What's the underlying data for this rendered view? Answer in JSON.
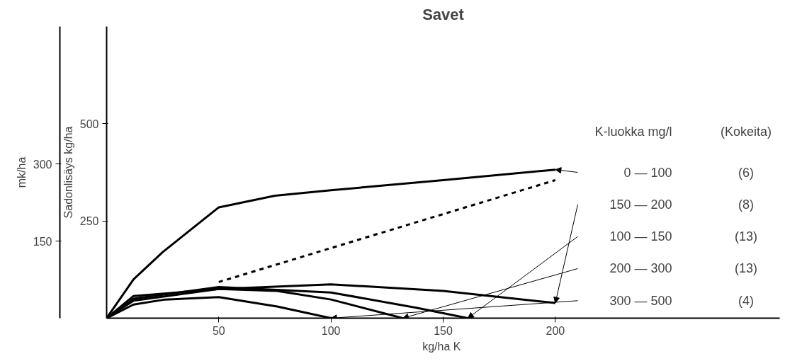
{
  "chart_data": {
    "type": "line",
    "title": "Savet",
    "xlabel": "kg/ha  K",
    "ylabel": "Sadonlisäys kg/ha",
    "y2label": "mk/ha",
    "legend_title": "K-luokka mg/l",
    "xlim": [
      0,
      300
    ],
    "xticks": [
      50,
      100,
      150,
      200
    ],
    "ylim": [
      0,
      750
    ],
    "yticks": [
      250,
      500
    ],
    "y2lim": [
      0,
      568
    ],
    "y2ticks": [
      150,
      300
    ],
    "annotations": [
      "(Kokeita)",
      "(6)",
      "(8)",
      "(13)",
      "(13)",
      "(4)"
    ],
    "series": [
      {
        "name": "0 — 100",
        "color": "#000000",
        "line_style": "solid",
        "x": [
          0,
          12,
          25,
          50,
          75,
          100,
          150,
          200
        ],
        "values": [
          0,
          100,
          170,
          285,
          315,
          329,
          355,
          382
        ]
      },
      {
        "name": "150 — 200",
        "color": "#000000",
        "line_style": "solid",
        "x": [
          0,
          12,
          50,
          100,
          150,
          200
        ],
        "values": [
          0,
          57,
          75,
          87,
          70,
          39
        ]
      },
      {
        "name": "100 — 150",
        "color": "#000000",
        "line_style": "solid",
        "x": [
          0,
          12,
          50,
          100,
          138,
          161
        ],
        "values": [
          0,
          50,
          80,
          66,
          27,
          0
        ]
      },
      {
        "name": "200 — 300",
        "color": "#000000",
        "line_style": "solid",
        "x": [
          0,
          12,
          50,
          76,
          100,
          132
        ],
        "values": [
          0,
          45,
          75,
          70,
          48,
          0
        ]
      },
      {
        "name": "300 — 500",
        "color": "#000000",
        "line_style": "solid",
        "x": [
          0,
          12,
          26,
          50,
          76,
          100
        ],
        "values": [
          0,
          35,
          48,
          54,
          30,
          0
        ]
      },
      {
        "color": "#000000",
        "line_style": "dashed",
        "x": [
          50,
          200
        ],
        "values": [
          93,
          355
        ]
      }
    ]
  }
}
